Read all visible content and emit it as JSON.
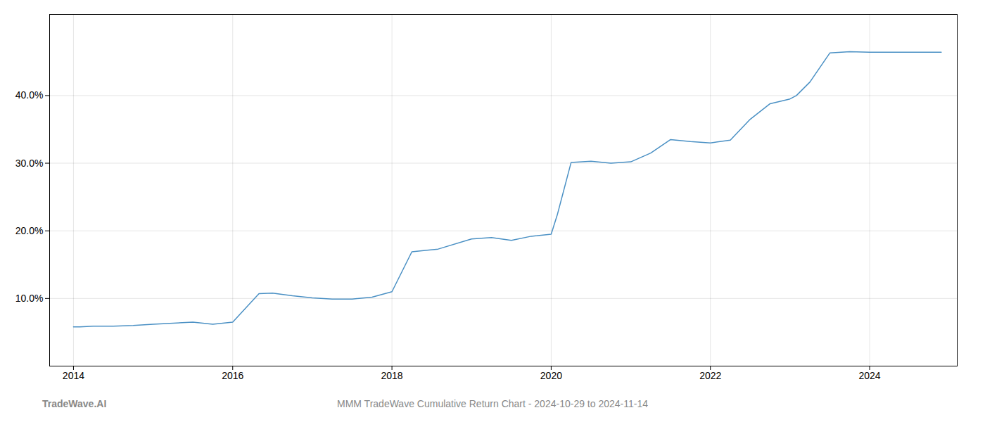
{
  "chart_data": {
    "type": "line",
    "title": "MMM TradeWave Cumulative Return Chart - 2024-10-29 to 2024-11-14",
    "annotations": [
      "TradeWave.AI"
    ],
    "color": "#4a90c4",
    "x": [
      2014.0,
      2014.08,
      2014.25,
      2014.5,
      2014.75,
      2015.0,
      2015.5,
      2015.75,
      2016.0,
      2016.33,
      2016.5,
      2016.75,
      2017.0,
      2017.25,
      2017.5,
      2017.75,
      2018.0,
      2018.25,
      2018.42,
      2018.58,
      2019.0,
      2019.25,
      2019.5,
      2019.75,
      2020.0,
      2020.08,
      2020.25,
      2020.5,
      2020.75,
      2021.0,
      2021.25,
      2021.5,
      2021.75,
      2022.0,
      2022.25,
      2022.5,
      2022.75,
      2023.0,
      2023.08,
      2023.25,
      2023.5,
      2023.75,
      2024.0,
      2024.5,
      2024.9
    ],
    "values": [
      5.8,
      5.8,
      5.9,
      5.9,
      6.0,
      6.2,
      6.5,
      6.2,
      6.5,
      10.7,
      10.8,
      10.4,
      10.1,
      9.9,
      9.9,
      10.2,
      11.0,
      16.9,
      17.1,
      17.3,
      18.8,
      19.0,
      18.6,
      19.2,
      19.5,
      22.5,
      30.1,
      30.3,
      30.0,
      30.2,
      31.5,
      33.5,
      33.2,
      33.0,
      33.4,
      36.5,
      38.8,
      39.5,
      40.0,
      42.0,
      46.3,
      46.5,
      46.4,
      46.4,
      46.4
    ],
    "xlim": [
      2013.7,
      2025.1
    ],
    "xticks": [
      2014,
      2016,
      2018,
      2020,
      2022,
      2024
    ],
    "ylim": [
      0,
      52
    ],
    "yticks": [
      {
        "value": 10.0,
        "label": "10.0%"
      },
      {
        "value": 20.0,
        "label": "20.0%"
      },
      {
        "value": 30.0,
        "label": "30.0%"
      },
      {
        "value": 40.0,
        "label": "40.0%"
      }
    ],
    "grid": true
  }
}
